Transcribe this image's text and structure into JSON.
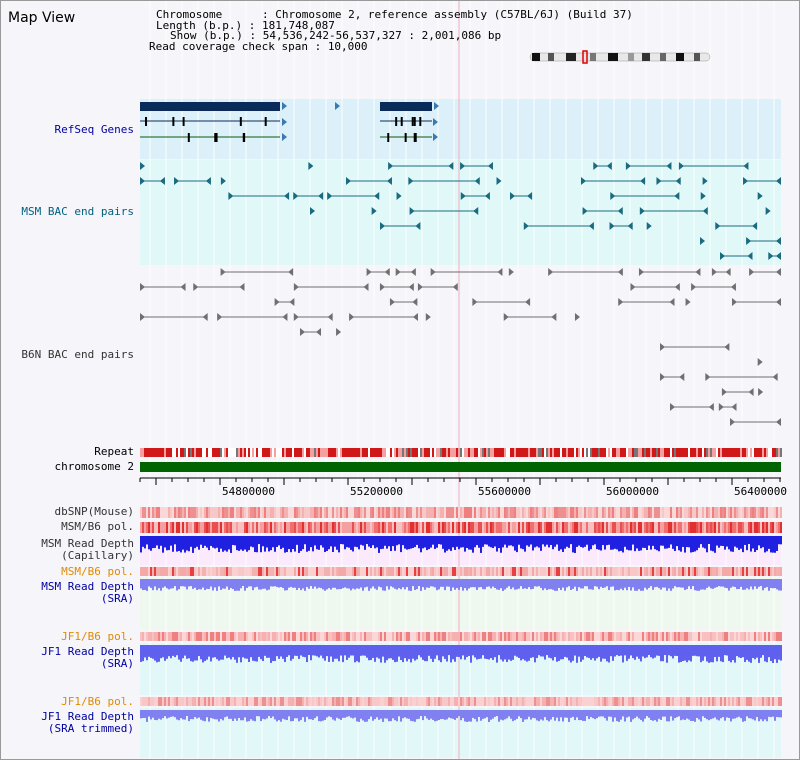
{
  "window": {
    "title": "Map View"
  },
  "info": {
    "chromosome_label": "Chromosome      : ",
    "chromosome_value": "Chromosome 2, reference assembly (C57BL/6J) (Build 37)",
    "length_label": "Length (b.p.) : ",
    "length_value": "181,748,087",
    "show_label": "Show (b.p.) : ",
    "show_value": "54,536,242-56,537,327 : 2,001,086 bp",
    "span_label": "Read coverage check span : ",
    "span_value": "10,000"
  },
  "tracks": {
    "refseq": "RefSeq Genes",
    "msm_bac": "MSM BAC end pairs",
    "b6n_bac": "B6N BAC end pairs",
    "repeat": "Repeat",
    "chromosome": "chromosome 2",
    "dbsnp": "dbSNP(Mouse)",
    "msm_b6_pol": "MSM/B6 pol.",
    "msm_read_depth_cap": "MSM Read Depth\n(Capillary)",
    "msm_b6_pol2": "MSM/B6 pol.",
    "msm_read_depth_sra": "MSM Read Depth\n(SRA)",
    "jf1_b6_pol": "JF1/B6 pol.",
    "jf1_read_depth_sra": "JF1 Read Depth\n(SRA)",
    "jf1_b6_pol2": "JF1/B6 pol.",
    "jf1_read_depth_trim": "JF1 Read Depth\n(SRA trimmed)"
  },
  "axis": {
    "ticks": [
      "54800000",
      "55200000",
      "55600000",
      "56000000",
      "56400000"
    ]
  },
  "colors": {
    "refseq_bg": "#dcf0fa",
    "msm_bg": "#e0f8f8",
    "gene_dark": "#0a2a5a",
    "msm_feature": "#1a6a80",
    "b6n_feature": "#707070",
    "chromosome": "#006400",
    "depth_blue": "#2020e0",
    "depth_light": "#8080f0"
  }
}
